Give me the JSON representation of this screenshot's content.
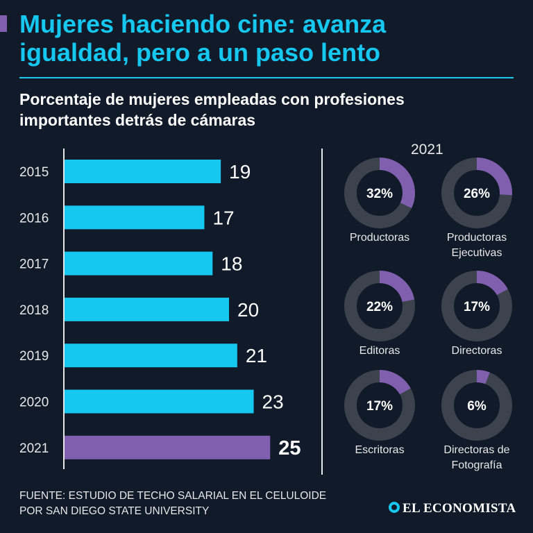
{
  "title": {
    "line1": "Mujeres haciendo cine: avanza",
    "line2": "igualdad, pero a un paso lento"
  },
  "subtitle": {
    "line1": "Porcentaje de mujeres empleadas con profesiones",
    "line2": "importantes detrás de cámaras"
  },
  "colors": {
    "background": "#101a28",
    "accent": "#16c7f0",
    "highlight": "#7f5fae",
    "ring_track": "#3d434d",
    "text": "#e8e8e8"
  },
  "chart_data": [
    {
      "type": "bar",
      "orientation": "horizontal",
      "categories": [
        "2015",
        "2016",
        "2017",
        "2018",
        "2019",
        "2020",
        "2021"
      ],
      "values": [
        19,
        17,
        18,
        20,
        21,
        23,
        25
      ],
      "labels": [
        "19",
        "17",
        "18",
        "20",
        "21",
        "23",
        "25"
      ],
      "highlight_category": "2021",
      "unit": "%"
    },
    {
      "type": "pie",
      "style": "donut",
      "year_label": "2021",
      "slices": [
        {
          "value": 32,
          "display": "32%",
          "label_lines": [
            "Productoras"
          ]
        },
        {
          "value": 26,
          "display": "26%",
          "label_lines": [
            "Productoras",
            "Ejecutivas"
          ]
        },
        {
          "value": 22,
          "display": "22%",
          "label_lines": [
            "Editoras"
          ]
        },
        {
          "value": 17,
          "display": "17%",
          "label_lines": [
            "Directoras"
          ]
        },
        {
          "value": 17,
          "display": "17%",
          "label_lines": [
            "Escritoras"
          ]
        },
        {
          "value": 6,
          "display": "6%",
          "label_lines": [
            "Directoras de",
            "Fotografía"
          ]
        }
      ]
    }
  ],
  "source": {
    "line1": "FUENTE: ESTUDIO DE TECHO SALARIAL EN EL CELULOIDE",
    "line2": "POR SAN DIEGO STATE UNIVERSITY"
  },
  "brand": {
    "name": "EL ECONOMISTA",
    "icon": "el-economista-logo-icon"
  }
}
